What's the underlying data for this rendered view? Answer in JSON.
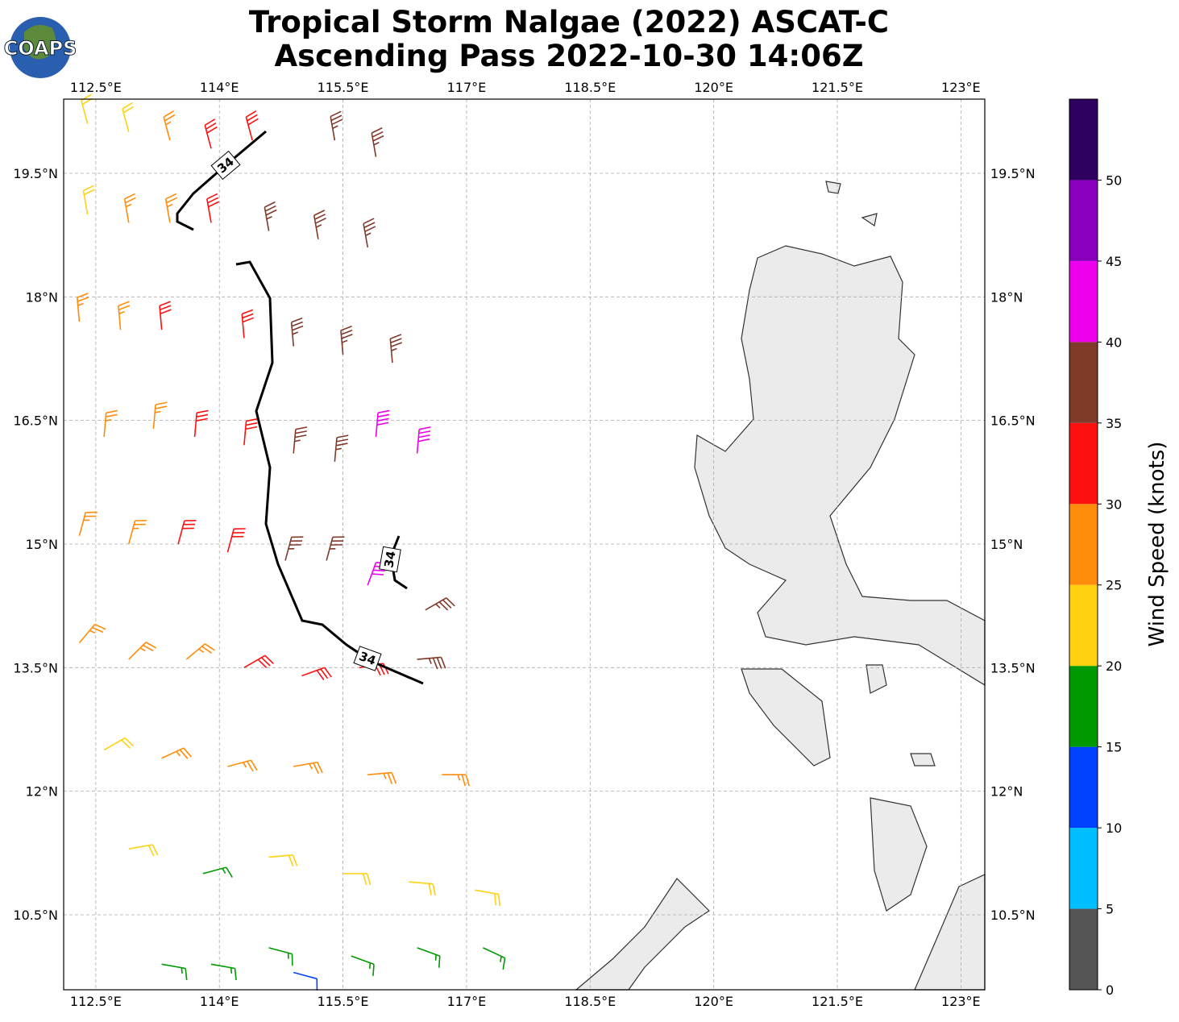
{
  "header": {
    "title_line1": "Tropical Storm Nalgae (2022) ASCAT-C",
    "title_line2": "Ascending Pass 2022-10-30 14:06Z",
    "logo": "COAPS"
  },
  "map": {
    "xlim": [
      112.11,
      123.29
    ],
    "ylim": [
      9.59,
      20.4
    ],
    "xticks": [
      {
        "value": 112.5,
        "label": "112.5°E"
      },
      {
        "value": 114,
        "label": "114°E"
      },
      {
        "value": 115.5,
        "label": "115.5°E"
      },
      {
        "value": 117,
        "label": "117°E"
      },
      {
        "value": 118.5,
        "label": "118.5°E"
      },
      {
        "value": 120,
        "label": "120°E"
      },
      {
        "value": 121.5,
        "label": "121.5°E"
      },
      {
        "value": 123,
        "label": "123°E"
      }
    ],
    "yticks": [
      {
        "value": 10.5,
        "label": "10.5°N"
      },
      {
        "value": 12,
        "label": "12°N"
      },
      {
        "value": 13.5,
        "label": "13.5°N"
      },
      {
        "value": 15,
        "label": "15°N"
      },
      {
        "value": 16.5,
        "label": "16.5°N"
      },
      {
        "value": 18,
        "label": "18°N"
      },
      {
        "value": 19.5,
        "label": "19.5°N"
      }
    ],
    "contour_labels": [
      "34",
      "34",
      "34"
    ],
    "barbs": [
      [
        112.4,
        20.1,
        22,
        345
      ],
      [
        112.9,
        20.0,
        23,
        345
      ],
      [
        113.4,
        19.9,
        27,
        345
      ],
      [
        113.9,
        19.8,
        31,
        345
      ],
      [
        114.4,
        19.9,
        33,
        345
      ],
      [
        115.4,
        19.9,
        37,
        350
      ],
      [
        115.9,
        19.7,
        37,
        350
      ],
      [
        112.4,
        19.0,
        24,
        350
      ],
      [
        112.9,
        18.9,
        27,
        350
      ],
      [
        113.4,
        18.9,
        28,
        350
      ],
      [
        113.9,
        18.9,
        32,
        350
      ],
      [
        114.6,
        18.8,
        37,
        350
      ],
      [
        115.2,
        18.7,
        37,
        350
      ],
      [
        115.8,
        18.6,
        38,
        350
      ],
      [
        112.3,
        17.7,
        27,
        355
      ],
      [
        112.8,
        17.6,
        28,
        355
      ],
      [
        113.3,
        17.6,
        32,
        355
      ],
      [
        114.3,
        17.5,
        33,
        355
      ],
      [
        114.9,
        17.4,
        36,
        355
      ],
      [
        115.5,
        17.3,
        37,
        355
      ],
      [
        116.1,
        17.2,
        37,
        355
      ],
      [
        112.6,
        16.3,
        27,
        5
      ],
      [
        113.2,
        16.4,
        28,
        5
      ],
      [
        113.7,
        16.3,
        31,
        5
      ],
      [
        114.3,
        16.2,
        33,
        5
      ],
      [
        114.9,
        16.1,
        36,
        5
      ],
      [
        115.4,
        16.0,
        37,
        5
      ],
      [
        115.9,
        16.3,
        42,
        5
      ],
      [
        116.4,
        16.1,
        43,
        5
      ],
      [
        112.3,
        15.1,
        26,
        15
      ],
      [
        112.9,
        15.0,
        28,
        15
      ],
      [
        113.5,
        15.0,
        31,
        15
      ],
      [
        114.1,
        14.9,
        33,
        15
      ],
      [
        114.8,
        14.8,
        36,
        15
      ],
      [
        115.3,
        14.8,
        37,
        15
      ],
      [
        115.8,
        14.5,
        41,
        20
      ],
      [
        116.5,
        14.2,
        38,
        60
      ],
      [
        112.3,
        13.8,
        26,
        40
      ],
      [
        112.9,
        13.6,
        27,
        45
      ],
      [
        113.6,
        13.6,
        29,
        50
      ],
      [
        114.3,
        13.5,
        32,
        60
      ],
      [
        115.0,
        13.4,
        33,
        70
      ],
      [
        115.7,
        13.5,
        34,
        80
      ],
      [
        116.4,
        13.6,
        37,
        85
      ],
      [
        112.6,
        12.5,
        23,
        60
      ],
      [
        113.3,
        12.4,
        26,
        65
      ],
      [
        114.1,
        12.3,
        27,
        75
      ],
      [
        114.9,
        12.3,
        28,
        80
      ],
      [
        115.8,
        12.2,
        27,
        85
      ],
      [
        116.7,
        12.2,
        26,
        90
      ],
      [
        112.9,
        11.3,
        22,
        80
      ],
      [
        113.8,
        11.0,
        18,
        75
      ],
      [
        114.6,
        11.2,
        23,
        85
      ],
      [
        115.5,
        11.0,
        23,
        90
      ],
      [
        116.3,
        10.9,
        22,
        95
      ],
      [
        117.1,
        10.8,
        22,
        100
      ],
      [
        113.3,
        9.9,
        18,
        100
      ],
      [
        113.9,
        9.9,
        17,
        100
      ],
      [
        114.6,
        10.1,
        17,
        105
      ],
      [
        114.9,
        9.8,
        12,
        105
      ],
      [
        115.6,
        10.0,
        17,
        110
      ],
      [
        116.4,
        10.1,
        18,
        110
      ],
      [
        117.2,
        10.1,
        19,
        115
      ]
    ]
  },
  "colorbar": {
    "label": "Wind Speed (knots)",
    "ticks": [
      0,
      5,
      10,
      15,
      20,
      25,
      30,
      35,
      40,
      45,
      50
    ],
    "lim": [
      0,
      55
    ],
    "colors": [
      "#555555",
      "#00bfff",
      "#0040ff",
      "#009900",
      "#ffd20f",
      "#ff8c0a",
      "#ff1010",
      "#803a2a",
      "#ee00ee",
      "#8800bb",
      "#2e0060"
    ]
  }
}
